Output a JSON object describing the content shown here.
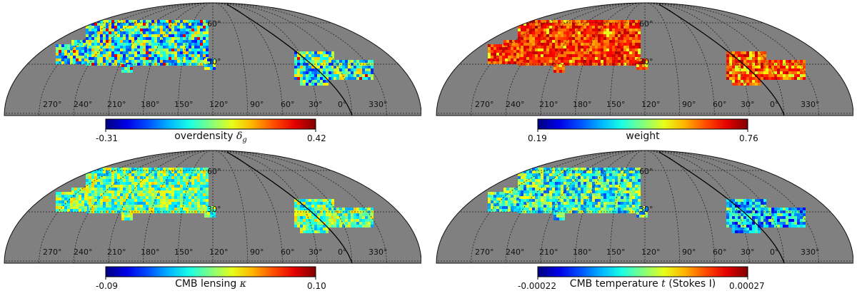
{
  "panels": [
    {
      "id": "overdensity",
      "colorbar": {
        "min_label": "-0.31",
        "max_label": "0.42",
        "title_prefix": "overdensity ",
        "title_symbol": "δ",
        "title_sub": "g",
        "title_suffix": "",
        "cmap": "jet"
      },
      "lon_labels": [
        "270°",
        "240°",
        "210°",
        "180°",
        "150°",
        "120°",
        "90°",
        "60°",
        "30°",
        "0°",
        "330°"
      ],
      "lat_labels": [
        "60°",
        "30°"
      ]
    },
    {
      "id": "weight",
      "colorbar": {
        "min_label": "0.19",
        "max_label": "0.76",
        "title_prefix": "weight",
        "title_symbol": "",
        "title_sub": "",
        "title_suffix": "",
        "cmap": "jet"
      },
      "lon_labels": [
        "270°",
        "240°",
        "210°",
        "180°",
        "150°",
        "120°",
        "90°",
        "60°",
        "30°",
        "0°",
        "330°"
      ],
      "lat_labels": [
        "60°",
        "30°"
      ]
    },
    {
      "id": "lensing",
      "colorbar": {
        "min_label": "-0.09",
        "max_label": "0.10",
        "title_prefix": "CMB lensing ",
        "title_symbol": "κ",
        "title_sub": "",
        "title_suffix": "",
        "cmap": "jet"
      },
      "lon_labels": [
        "270°",
        "240°",
        "210°",
        "180°",
        "150°",
        "120°",
        "90°",
        "60°",
        "30°",
        "0°",
        "330°"
      ],
      "lat_labels": [
        "60°",
        "30°"
      ]
    },
    {
      "id": "temperature",
      "colorbar": {
        "min_label": "-0.00022",
        "max_label": "0.00027",
        "title_prefix": "CMB temperature ",
        "title_symbol": "t",
        "title_sub": "",
        "title_suffix": " (Stokes I)",
        "cmap": "jet"
      },
      "lon_labels": [
        "270°",
        "240°",
        "210°",
        "180°",
        "150°",
        "120°",
        "90°",
        "60°",
        "30°",
        "0°",
        "330°"
      ],
      "lat_labels": [
        "60°",
        "30°"
      ]
    }
  ],
  "colors": {
    "map_background": "#808080",
    "grid_line": "#222222",
    "outline": "#111111"
  }
}
